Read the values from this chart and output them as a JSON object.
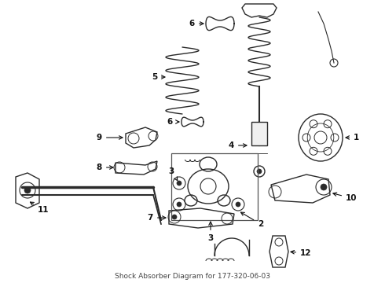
{
  "title": "Shock Absorber Diagram for 177-320-06-03",
  "bg_color": "#ffffff",
  "line_color": "#2a2a2a",
  "label_color": "#111111",
  "figsize": [
    4.9,
    3.6
  ],
  "dpi": 100,
  "xlim": [
    0,
    490
  ],
  "ylim": [
    0,
    360
  ]
}
